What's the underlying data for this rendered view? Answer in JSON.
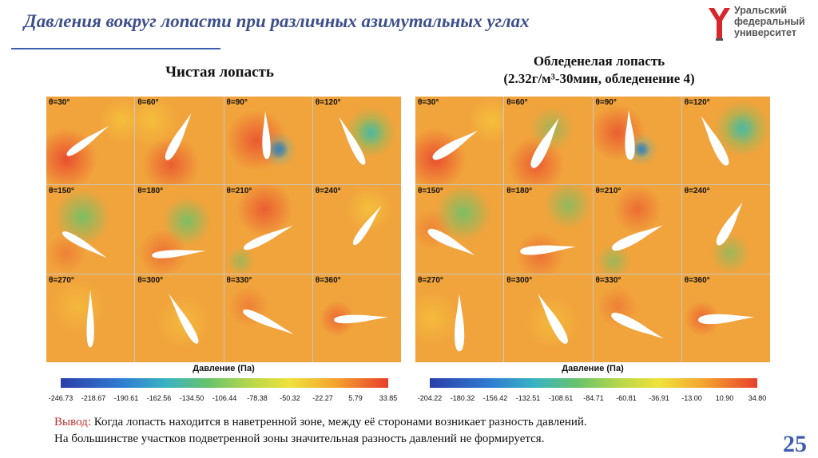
{
  "header": {
    "title": "Давления вокруг лопасти при различных азимутальных углах",
    "logo_text": "Уральский\nфедеральный\nуниверситет"
  },
  "left_panel": {
    "heading": "Чистая лопасть",
    "angles": [
      "θ=30°",
      "θ=60°",
      "θ=90°",
      "θ=120°",
      "θ=150°",
      "θ=180°",
      "θ=210°",
      "θ=240°",
      "θ=270°",
      "θ=300°",
      "θ=330°",
      "θ=360°"
    ],
    "colorbar": {
      "title": "Давление (Па)",
      "ticks": [
        "-246.73",
        "-218.67",
        "-190.61",
        "-162.56",
        "-134.50",
        "-106.44",
        "-78.38",
        "-50.32",
        "-22.27",
        "5.79",
        "33.85"
      ]
    }
  },
  "right_panel": {
    "heading_line1": "Обледенелая лопасть",
    "heading_line2": "(2.32г/м³-30мин, обледенение 4)",
    "angles": [
      "θ=30°",
      "θ=60°",
      "θ=90°",
      "θ=120°",
      "θ=150°",
      "θ=180°",
      "θ=210°",
      "θ=240°",
      "θ=270°",
      "θ=300°",
      "θ=330°",
      "θ=360°"
    ],
    "colorbar": {
      "title": "Давление (Па)",
      "ticks": [
        "-204.22",
        "-180.32",
        "-156.42",
        "-132.51",
        "-108.61",
        "-84.71",
        "-60.81",
        "-36.91",
        "-13.00",
        "10.90",
        "34.80"
      ]
    }
  },
  "conclusion": {
    "label": "Вывод:",
    "line1": " Когда лопасть находится в наветренной зоне, между её сторонами возникает разность давлений.",
    "line2": "На большинстве участков подветренной зоны значительная разность давлений не формируется."
  },
  "page_number": "25",
  "colors": {
    "title": "#3d4f8c",
    "accent": "#3d5db0",
    "conclusion_label": "#c03030",
    "field_base": "#f1a33c",
    "high_pressure": "#e8402c",
    "low_pressure": "#67c36b",
    "min_pressure": "#2b3fa8"
  }
}
